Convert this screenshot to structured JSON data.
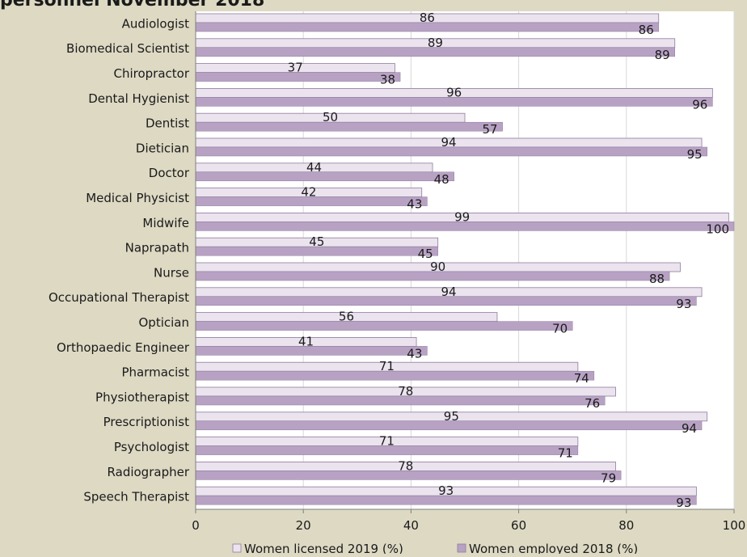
{
  "chart_data": {
    "type": "bar",
    "orientation": "horizontal",
    "title": "personnel November 2018",
    "categories": [
      "Audiologist",
      "Biomedical Scientist",
      "Chiropractor",
      "Dental Hygienist",
      "Dentist",
      "Dietician",
      "Doctor",
      "Medical Physicist",
      "Midwife",
      "Naprapath",
      "Nurse",
      "Occupational Therapist",
      "Optician",
      "Orthopaedic Engineer",
      "Pharmacist",
      "Physiotherapist",
      "Prescriptionist",
      "Psychologist",
      "Radiographer",
      "Speech Therapist"
    ],
    "series": [
      {
        "name": "Women licensed 2019 (%)",
        "values": [
          86,
          89,
          37,
          96,
          50,
          94,
          44,
          42,
          99,
          45,
          90,
          94,
          56,
          41,
          71,
          78,
          95,
          71,
          78,
          93
        ],
        "color": "#ebe4ef"
      },
      {
        "name": "Women employed 2018 (%)",
        "values": [
          86,
          89,
          38,
          96,
          57,
          95,
          48,
          43,
          100,
          45,
          88,
          93,
          70,
          43,
          74,
          76,
          94,
          71,
          79,
          93
        ],
        "color": "#b8a2c4"
      }
    ],
    "xlim": [
      0,
      100
    ],
    "xticks": [
      0,
      20,
      40,
      60,
      80,
      100
    ],
    "grid": true,
    "legend_position": "bottom"
  },
  "colors": {
    "background": "#ddd9c3",
    "plot_background": "#ffffff",
    "grid": "#d9d9d9",
    "bar_border": "#8e7a9b",
    "text": "#1a1a1a"
  }
}
